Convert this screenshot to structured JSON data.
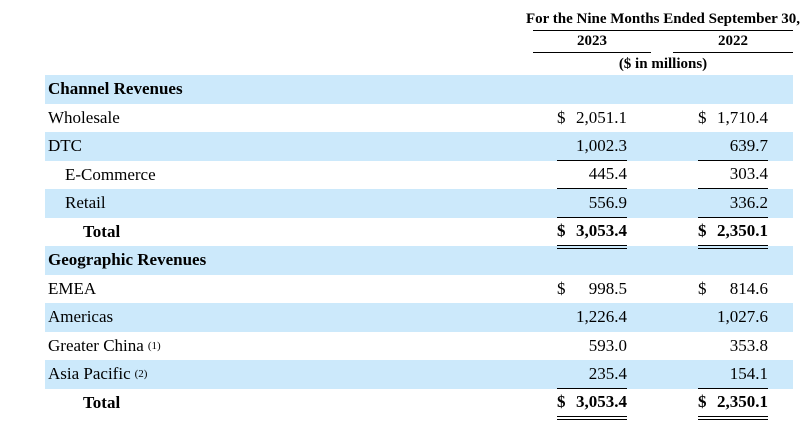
{
  "header": {
    "period_label": "For the Nine Months Ended September 30,",
    "col_2023": "2023",
    "col_2022": "2022",
    "units_label": "($ in millions)"
  },
  "colors": {
    "row_stripe": "#cce9fb",
    "text": "#000000",
    "rule": "#000000"
  },
  "rows": [
    {
      "type": "section",
      "label": "Channel Revenues"
    },
    {
      "type": "data",
      "label": "Wholesale",
      "indent": 0,
      "dollar": true,
      "v2023": "2,051.1",
      "v2022": "1,710.4",
      "underline": "none"
    },
    {
      "type": "data",
      "label": "DTC",
      "indent": 0,
      "dollar": false,
      "v2023": "1,002.3",
      "v2022": "639.7",
      "underline": "single"
    },
    {
      "type": "data",
      "label": "E-Commerce",
      "indent": 1,
      "dollar": false,
      "v2023": "445.4",
      "v2022": "303.4",
      "underline": "single"
    },
    {
      "type": "data",
      "label": "Retail",
      "indent": 1,
      "dollar": false,
      "v2023": "556.9",
      "v2022": "336.2",
      "underline": "single"
    },
    {
      "type": "data",
      "label": "Total",
      "indent": 2,
      "bold": true,
      "dollar": true,
      "v2023": "3,053.4",
      "v2022": "2,350.1",
      "underline": "double"
    },
    {
      "type": "section",
      "label": "Geographic Revenues"
    },
    {
      "type": "data",
      "label": "EMEA",
      "indent": 0,
      "dollar": true,
      "v2023": "998.5",
      "v2022": "814.6",
      "underline": "none"
    },
    {
      "type": "data",
      "label": "Americas",
      "indent": 0,
      "dollar": false,
      "v2023": "1,226.4",
      "v2022": "1,027.6",
      "underline": "none"
    },
    {
      "type": "data",
      "label": "Greater China",
      "sup": "(1)",
      "indent": 0,
      "dollar": false,
      "v2023": "593.0",
      "v2022": "353.8",
      "underline": "none"
    },
    {
      "type": "data",
      "label": "Asia Pacific",
      "sup": "(2)",
      "indent": 0,
      "dollar": false,
      "v2023": "235.4",
      "v2022": "154.1",
      "underline": "single"
    },
    {
      "type": "data",
      "label": "Total",
      "indent": 2,
      "bold": true,
      "dollar": true,
      "v2023": "3,053.4",
      "v2022": "2,350.1",
      "underline": "double"
    }
  ]
}
